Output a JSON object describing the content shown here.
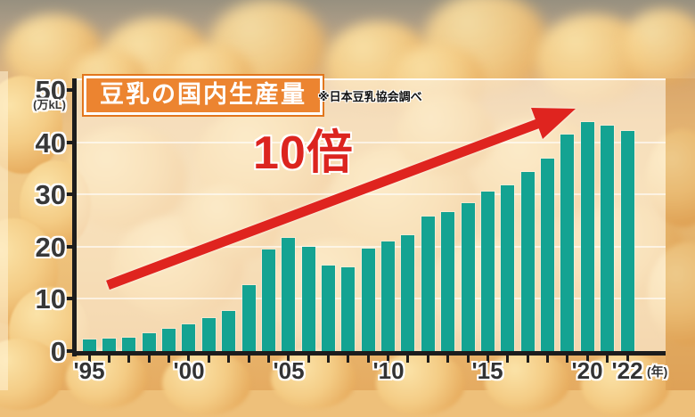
{
  "title": "豆乳の国内生産量",
  "source_note": "※日本豆乳協会調べ",
  "annotation": "10倍",
  "y_axis": {
    "unit": "(万kL)",
    "tick_labels": [
      "0",
      "10",
      "20",
      "30",
      "40",
      "50"
    ]
  },
  "x_axis": {
    "unit": "(年)",
    "visible_labels": [
      {
        "label": "'95",
        "year": 1995
      },
      {
        "label": "'00",
        "year": 2000
      },
      {
        "label": "'05",
        "year": 2005
      },
      {
        "label": "'10",
        "year": 2010
      },
      {
        "label": "'15",
        "year": 2015
      },
      {
        "label": "'20",
        "year": 2020
      },
      {
        "label": "'22",
        "year": 2022
      }
    ]
  },
  "colors": {
    "bar": "#14a392",
    "arrow": "#df241f",
    "annotation_text": "#dc241f",
    "title_bg": "#ec8430",
    "title_border": "#e2761d",
    "axis": "#1c1c1c"
  },
  "chart_data": {
    "type": "bar",
    "title": "豆乳の国内生産量",
    "xlabel": "年",
    "ylabel": "万kL",
    "ylim": [
      0,
      50
    ],
    "grid": true,
    "legend": false,
    "source": "※日本豆乳協会調べ",
    "annotations": [
      {
        "text": "10倍",
        "kind": "arrow-up-right"
      }
    ],
    "categories": [
      "1995",
      "1996",
      "1997",
      "1998",
      "1999",
      "2000",
      "2001",
      "2002",
      "2003",
      "2004",
      "2005",
      "2006",
      "2007",
      "2008",
      "2009",
      "2010",
      "2011",
      "2012",
      "2013",
      "2014",
      "2015",
      "2016",
      "2017",
      "2018",
      "2019",
      "2020",
      "2021",
      "2022"
    ],
    "values": [
      2.3,
      2.4,
      2.6,
      3.4,
      4.3,
      5.1,
      6.4,
      7.7,
      12.6,
      19.5,
      21.7,
      20.0,
      16.4,
      16.1,
      19.6,
      21.0,
      22.2,
      25.7,
      26.6,
      28.3,
      30.5,
      31.8,
      34.4,
      36.8,
      41.5,
      43.8,
      43.2,
      42.2
    ]
  }
}
